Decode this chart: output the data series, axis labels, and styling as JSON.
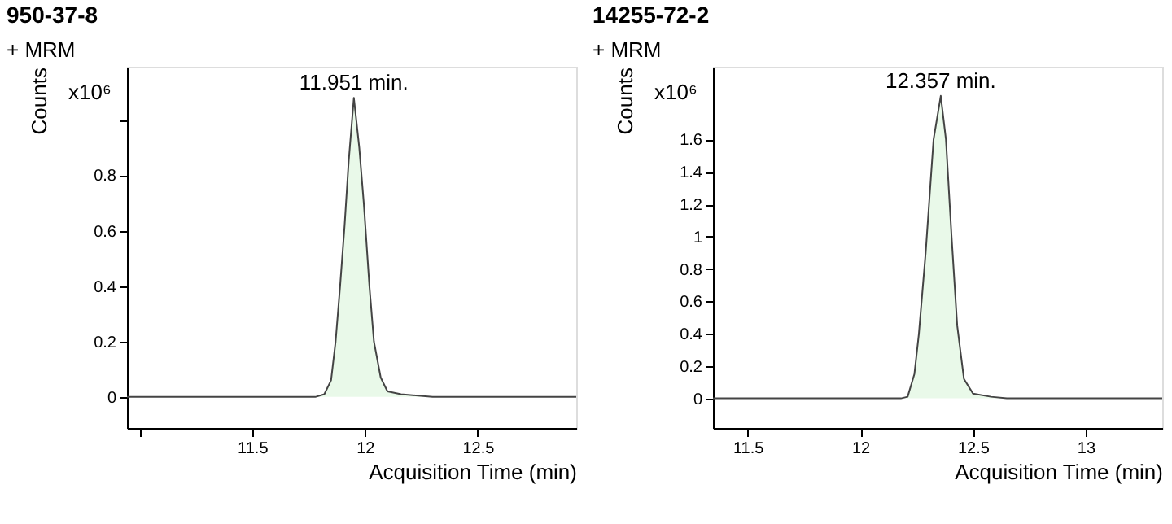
{
  "chart_data": [
    {
      "type": "area",
      "title": "950-37-8",
      "xlabel": "Acquisition Time (min)",
      "ylabel": "Counts",
      "annotations": [
        "+ MRM",
        "x10⁶",
        {
          "text": "11.951 min.",
          "x": 11.951,
          "y": 1.08
        }
      ],
      "series": [
        {
          "color": "#e0f7e0",
          "x": [
            10.945,
            11.78,
            11.82,
            11.85,
            11.87,
            11.89,
            11.91,
            11.928,
            11.951,
            11.975,
            11.995,
            12.02,
            12.04,
            12.07,
            12.1,
            12.16,
            12.3,
            12.937
          ],
          "values": [
            0,
            0,
            0.01,
            0.06,
            0.2,
            0.4,
            0.62,
            0.85,
            1.08,
            0.9,
            0.7,
            0.4,
            0.2,
            0.07,
            0.02,
            0.01,
            0,
            0
          ]
        }
      ],
      "xlim": [
        10.945,
        12.937
      ],
      "xticks": [
        {
          "value": 11,
          "label": null
        },
        11.5,
        12,
        12.5
      ],
      "ylim": [
        -0.112,
        1.192
      ],
      "yticks": [
        0,
        0.2,
        0.4,
        0.6,
        0.8,
        {
          "value": 1,
          "label": null
        }
      ],
      "grid": false
    },
    {
      "type": "area",
      "title": "14255-72-2",
      "xlabel": "Acquisition Time (min)",
      "ylabel": "Counts",
      "annotations": [
        "+ MRM",
        "x10⁶",
        {
          "text": "12.357 min.",
          "x": 12.357,
          "y": 1.87
        }
      ],
      "series": [
        {
          "color": "#e0f7e0",
          "x": [
            11.346,
            12.18,
            12.21,
            12.24,
            12.26,
            12.29,
            12.325,
            12.357,
            12.38,
            12.405,
            12.43,
            12.46,
            12.5,
            12.58,
            12.65,
            13.34
          ],
          "values": [
            0,
            0,
            0.01,
            0.15,
            0.4,
            0.9,
            1.6,
            1.87,
            1.6,
            1.0,
            0.45,
            0.12,
            0.03,
            0.01,
            0,
            0
          ]
        }
      ],
      "xlim": [
        11.346,
        13.34
      ],
      "xticks": [
        11.5,
        12,
        12.5,
        13
      ],
      "ylim": [
        -0.183,
        2.05
      ],
      "yticks": [
        0,
        0.2,
        0.4,
        0.6,
        0.8,
        1,
        1.2,
        1.4,
        1.6
      ],
      "grid": false
    }
  ]
}
